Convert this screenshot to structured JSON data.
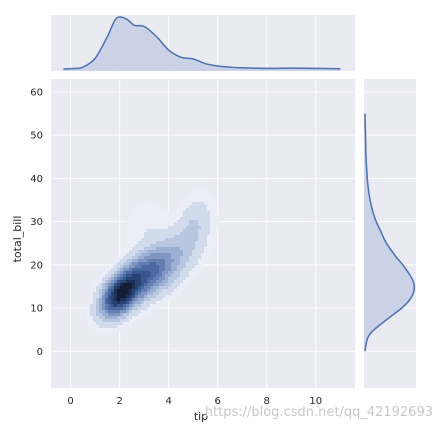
{
  "chart_data": {
    "type": "kde-jointplot",
    "xlabel": "tip",
    "ylabel": "total_bill",
    "xlim": [
      -0.8,
      11.6
    ],
    "ylim": [
      -8.5,
      63
    ],
    "xticks": [
      0,
      2,
      4,
      6,
      8,
      10
    ],
    "yticks": [
      0,
      10,
      20,
      30,
      40,
      50,
      60
    ],
    "grid": true,
    "colors": {
      "background": "#eaeaf2",
      "grid": "#ffffff",
      "line": "#4c72b0",
      "fill": "#c5cde4",
      "contours": [
        "#eaeef6",
        "#d2dbec",
        "#b8c6e0",
        "#9cb0d3",
        "#7f97c2",
        "#637fb2",
        "#4c6aa2",
        "#39568c",
        "#284273",
        "#1b2f57",
        "#141c32"
      ]
    },
    "kde_components": [
      {
        "x": 2.0,
        "y": 13.0,
        "sx": 0.55,
        "sy": 3.6,
        "rho": 0.45,
        "weight": 1.0
      },
      {
        "x": 3.1,
        "y": 18.0,
        "sx": 0.75,
        "sy": 4.2,
        "rho": 0.45,
        "weight": 0.6
      },
      {
        "x": 4.3,
        "y": 22.0,
        "sx": 0.9,
        "sy": 6.0,
        "rho": 0.55,
        "weight": 0.22
      },
      {
        "x": 5.1,
        "y": 30.5,
        "sx": 0.45,
        "sy": 4.5,
        "rho": 0.3,
        "weight": 0.14
      },
      {
        "x": 3.0,
        "y": 30.0,
        "sx": 0.6,
        "sy": 3.5,
        "rho": 0.2,
        "weight": 0.1
      }
    ],
    "marginal_x": {
      "x": [
        -0.3,
        0.2,
        0.5,
        1.0,
        1.5,
        1.8,
        2.0,
        2.3,
        2.6,
        3.0,
        3.5,
        4.0,
        4.5,
        5.0,
        5.5,
        6.0,
        6.5,
        7.0,
        8.0,
        9.0,
        10.0,
        11.0
      ],
      "density": [
        0.0,
        0.01,
        0.03,
        0.18,
        0.55,
        0.82,
        0.88,
        0.84,
        0.74,
        0.72,
        0.55,
        0.32,
        0.2,
        0.17,
        0.09,
        0.05,
        0.03,
        0.02,
        0.01,
        0.015,
        0.01,
        0.005
      ]
    },
    "marginal_y": {
      "y": [
        0,
        3,
        5,
        8,
        10,
        12,
        14,
        16,
        18,
        20,
        22,
        25,
        28,
        30,
        32,
        35,
        38,
        40,
        45,
        50,
        55
      ],
      "density": [
        0.0,
        0.05,
        0.18,
        0.5,
        0.72,
        0.88,
        0.96,
        0.95,
        0.86,
        0.74,
        0.6,
        0.42,
        0.3,
        0.22,
        0.16,
        0.1,
        0.06,
        0.045,
        0.02,
        0.01,
        0.0
      ]
    }
  },
  "watermark": "https://blog.csdn.net/qq_42192693"
}
